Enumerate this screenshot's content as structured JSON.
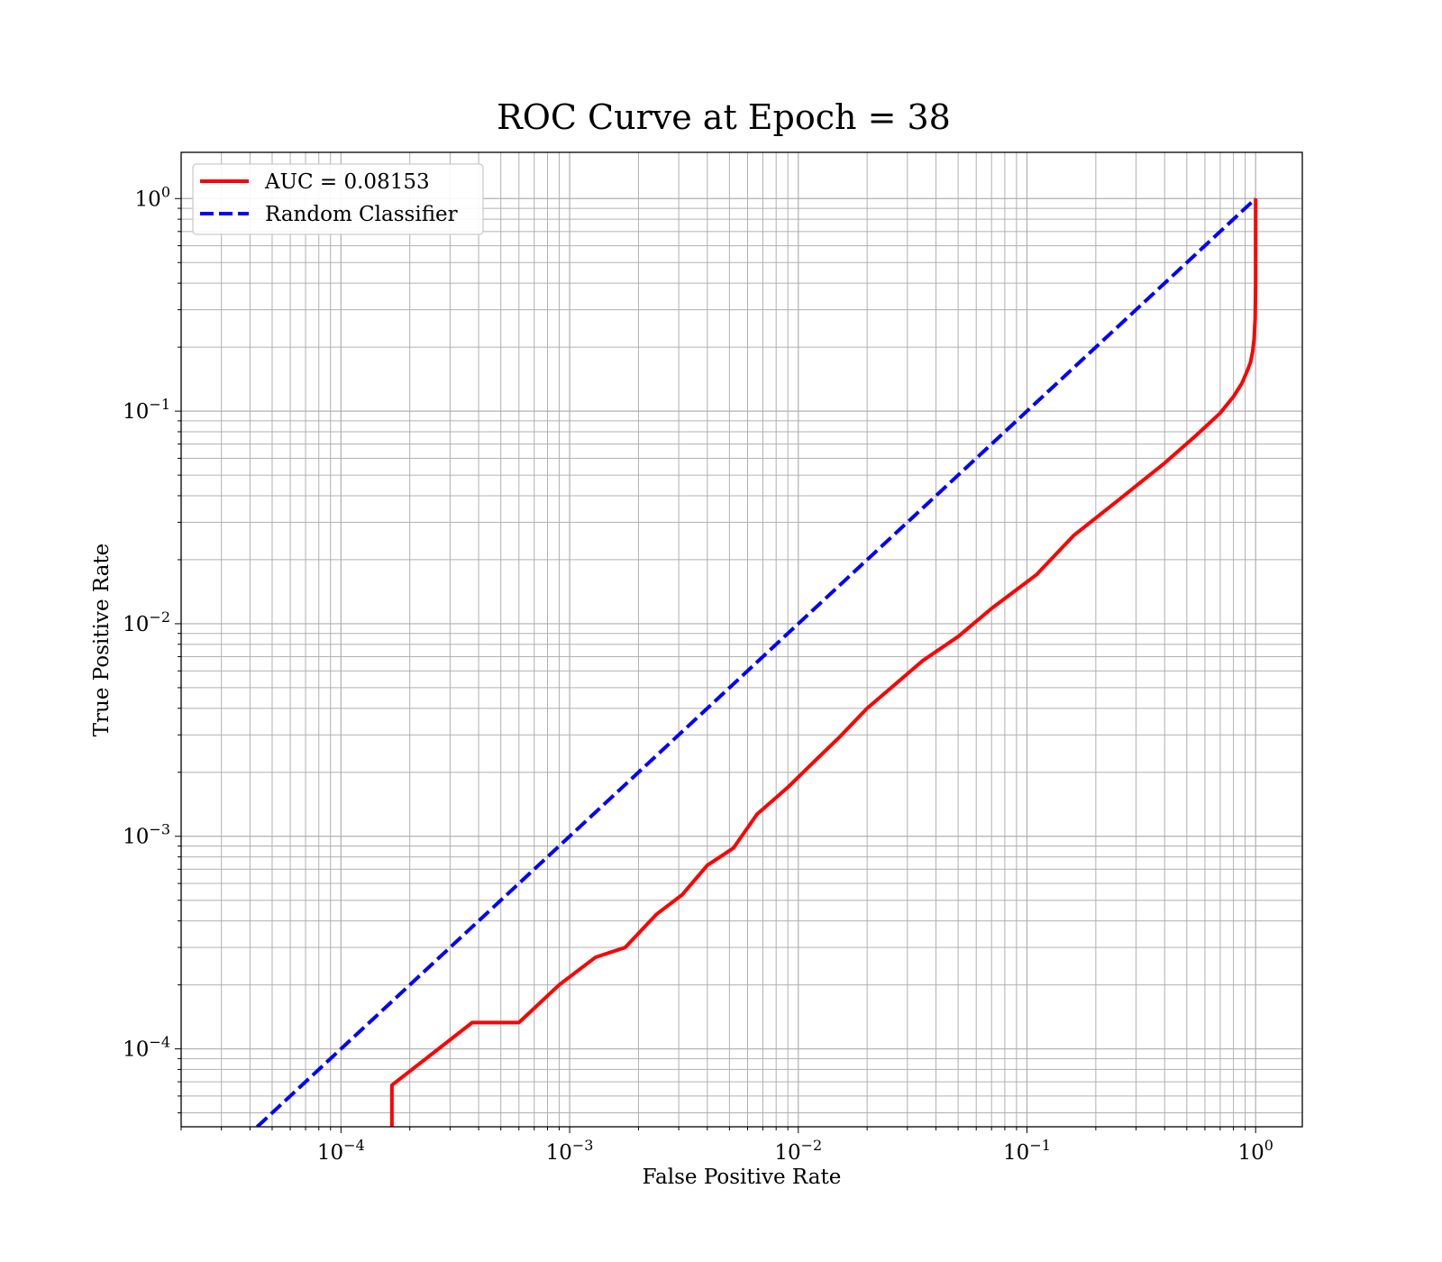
{
  "chart_data": {
    "type": "line",
    "title": "ROC Curve at Epoch = 38",
    "xlabel": "False Positive Rate",
    "ylabel": "True Positive Rate",
    "xscale": "log",
    "yscale": "log",
    "xlim": [
      2e-05,
      1.6
    ],
    "ylim": [
      4.3e-05,
      1.65
    ],
    "grid": "both (major and minor)",
    "legend_position": "upper-left",
    "x_ticks": [
      {
        "value": 0.0001,
        "base": "10",
        "exp": "−4"
      },
      {
        "value": 0.001,
        "base": "10",
        "exp": "−3"
      },
      {
        "value": 0.01,
        "base": "10",
        "exp": "−2"
      },
      {
        "value": 0.1,
        "base": "10",
        "exp": "−1"
      },
      {
        "value": 1,
        "base": "10",
        "exp": "0"
      }
    ],
    "y_ticks": [
      {
        "value": 0.0001,
        "base": "10",
        "exp": "−4"
      },
      {
        "value": 0.001,
        "base": "10",
        "exp": "−3"
      },
      {
        "value": 0.01,
        "base": "10",
        "exp": "−2"
      },
      {
        "value": 0.1,
        "base": "10",
        "exp": "−1"
      },
      {
        "value": 1,
        "base": "10",
        "exp": "0"
      }
    ],
    "series": [
      {
        "name": "AUC = 0.08153",
        "color": "#ff0000",
        "style": "solid",
        "x": [
          0.000167,
          0.000167,
          0.000375,
          0.0006,
          0.0009,
          0.0013,
          0.00175,
          0.0024,
          0.0031,
          0.004,
          0.0052,
          0.0066,
          0.009,
          0.012,
          0.015,
          0.02,
          0.035,
          0.05,
          0.07,
          0.11,
          0.16,
          0.25,
          0.4,
          0.55,
          0.7,
          0.8,
          0.87,
          0.92,
          0.95,
          0.97,
          0.985,
          0.995,
          1.0,
          1.0
        ],
        "y": [
          4.3e-05,
          6.75e-05,
          0.000133,
          0.000133,
          0.0002,
          0.00027,
          0.0003,
          0.00043,
          0.00053,
          0.00073,
          0.00088,
          0.00127,
          0.0017,
          0.0023,
          0.0029,
          0.004,
          0.0067,
          0.0087,
          0.0118,
          0.017,
          0.026,
          0.038,
          0.057,
          0.077,
          0.098,
          0.117,
          0.135,
          0.155,
          0.17,
          0.19,
          0.22,
          0.27,
          0.4,
          1.0
        ]
      },
      {
        "name": "Random Classifier",
        "color": "#0000ff",
        "style": "dashed",
        "x": [
          4.3e-05,
          1.0
        ],
        "y": [
          4.3e-05,
          1.0
        ]
      }
    ]
  }
}
